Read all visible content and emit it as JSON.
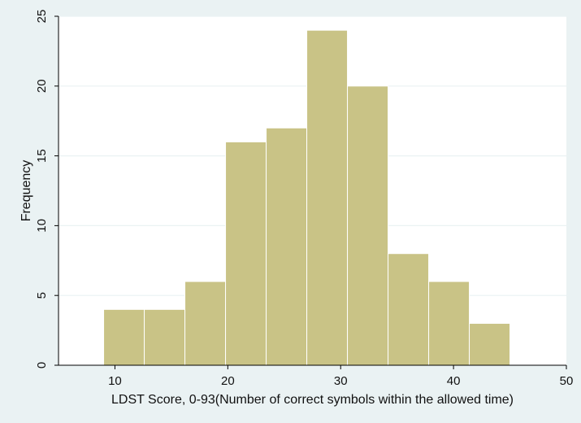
{
  "chart_data": {
    "type": "bar",
    "subtype": "histogram",
    "title": "",
    "xlabel": "LDST Score, 0-93(Number of correct symbols within the allowed time)",
    "ylabel": "Frequency",
    "xlim": [
      5,
      50
    ],
    "ylim": [
      0,
      25
    ],
    "xticks": [
      "10",
      "20",
      "30",
      "40",
      "50"
    ],
    "yticks": [
      "0",
      "5",
      "10",
      "15",
      "20",
      "25"
    ],
    "bin_edges": [
      9,
      12.6,
      16.2,
      19.8,
      23.4,
      27,
      30.6,
      34.2,
      37.8,
      41.4,
      45
    ],
    "values": [
      4,
      4,
      6,
      16,
      17,
      24,
      20,
      8,
      6,
      3
    ],
    "grid": true,
    "legend": "none",
    "colors": {
      "bar_fill": "#c9c386",
      "bar_edge": "#ffffff",
      "plot_background": "#ffffff",
      "outer_background": "#eaf2f3",
      "grid": "#eaf2f3",
      "axis": "#000000"
    }
  }
}
